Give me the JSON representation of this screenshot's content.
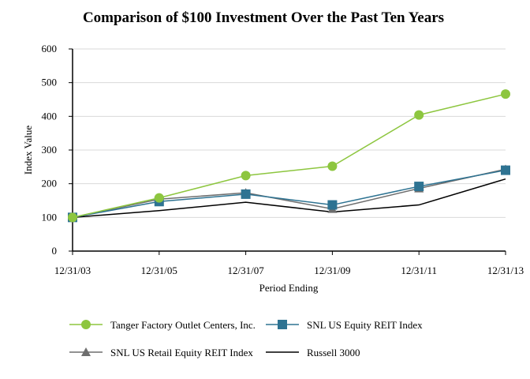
{
  "chart_data": {
    "type": "line",
    "title": "Comparison of $100  Investment Over the Past Ten Years",
    "xlabel": "Period Ending",
    "ylabel": "Index Value",
    "categories": [
      "12/31/03",
      "12/31/05",
      "12/31/07",
      "12/31/09",
      "12/31/11",
      "12/31/13"
    ],
    "ylim": [
      0,
      600
    ],
    "yticks": [
      0,
      100,
      200,
      300,
      400,
      500,
      600
    ],
    "grid": true,
    "legend_position": "bottom",
    "series": [
      {
        "name": "Tanger Factory Outlet Centers, Inc.",
        "values": [
          100,
          158,
          224,
          252,
          404,
          466
        ],
        "color": "#8dc63f",
        "marker": "circle"
      },
      {
        "name": "SNL US Equity REIT Index",
        "values": [
          100,
          147,
          169,
          137,
          192,
          240
        ],
        "color": "#2e7392",
        "marker": "square"
      },
      {
        "name": "SNL US Retail Equity REIT Index",
        "values": [
          100,
          154,
          173,
          125,
          186,
          243
        ],
        "color": "#6e6e6e",
        "marker": "triangle"
      },
      {
        "name": "Russell 3000",
        "values": [
          100,
          120,
          145,
          116,
          137,
          214
        ],
        "color": "#000000",
        "marker": "none"
      }
    ]
  }
}
